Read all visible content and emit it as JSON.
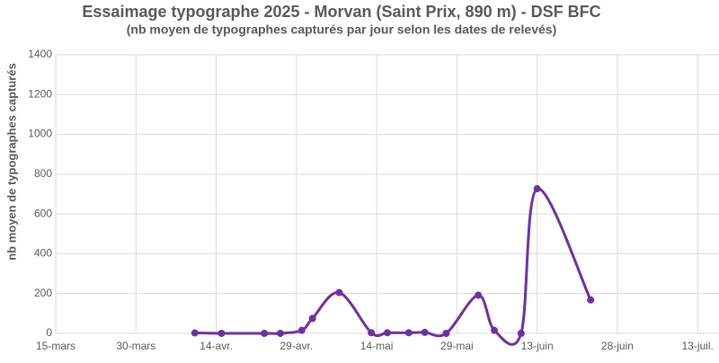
{
  "chart_data": {
    "type": "line",
    "title": "Essaimage typographe 2025 - Morvan (Saint Prix, 890 m) - DSF BFC",
    "subtitle": "(nb moyen de typographes capturés par jour selon les dates de relevés)",
    "y_label": "nb moyen de typographes capturés",
    "x": [
      100,
      105,
      113,
      116,
      120,
      122,
      127,
      133,
      136,
      140,
      143,
      147,
      153,
      156,
      161,
      164,
      174
    ],
    "values": [
      2,
      0,
      0,
      0,
      15,
      75,
      205,
      3,
      3,
      3,
      5,
      0,
      192,
      15,
      0,
      727,
      168
    ],
    "color": "#7030a0",
    "xlim": [
      74,
      198
    ],
    "xticks": [
      {
        "value": 74,
        "label": "15-mars"
      },
      {
        "value": 89,
        "label": "30-mars"
      },
      {
        "value": 104,
        "label": "14-avr."
      },
      {
        "value": 119,
        "label": "29-avr."
      },
      {
        "value": 134,
        "label": "14-mai"
      },
      {
        "value": 149,
        "label": "29-mai"
      },
      {
        "value": 164,
        "label": "13-juin"
      },
      {
        "value": 179,
        "label": "28-juin"
      },
      {
        "value": 194,
        "label": "13-juil."
      }
    ],
    "ylim": [
      0,
      1400
    ],
    "yticks": [
      0,
      200,
      400,
      600,
      800,
      1000,
      1200,
      1400
    ],
    "grid": true
  }
}
